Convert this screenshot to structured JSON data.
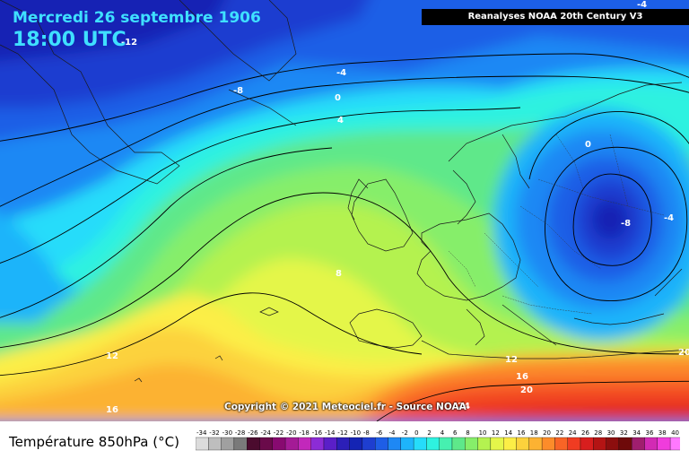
{
  "header": {
    "date": "Mercredi 26 septembre 1906",
    "time": "18:00 UTC",
    "source": "Reanalyses NOAA 20th Century V3"
  },
  "copyright": "Copyright © 2021 Meteociel.fr - Source NOAA",
  "legend": {
    "title": "Température 850hPa (°C)",
    "steps": [
      {
        "v": "-34",
        "c": "#dcdcdc"
      },
      {
        "v": "-32",
        "c": "#bebebe"
      },
      {
        "v": "-30",
        "c": "#a0a0a0"
      },
      {
        "v": "-28",
        "c": "#7a7a7a"
      },
      {
        "v": "-26",
        "c": "#4b0b2e"
      },
      {
        "v": "-24",
        "c": "#6a0a4a"
      },
      {
        "v": "-22",
        "c": "#880a70"
      },
      {
        "v": "-20",
        "c": "#a41b96"
      },
      {
        "v": "-18",
        "c": "#c228bb"
      },
      {
        "v": "-16",
        "c": "#8c2cd6"
      },
      {
        "v": "-14",
        "c": "#5a1fc8"
      },
      {
        "v": "-12",
        "c": "#2c1fb8"
      },
      {
        "v": "-10",
        "c": "#1424b4"
      },
      {
        "v": "-8",
        "c": "#1e3ed0"
      },
      {
        "v": "-6",
        "c": "#1e5ee6"
      },
      {
        "v": "-4",
        "c": "#1e88f4"
      },
      {
        "v": "-2",
        "c": "#1eb4fa"
      },
      {
        "v": "0",
        "c": "#26dcfa"
      },
      {
        "v": "2",
        "c": "#2ef2e0"
      },
      {
        "v": "4",
        "c": "#46f0b0"
      },
      {
        "v": "6",
        "c": "#5ee88a"
      },
      {
        "v": "8",
        "c": "#86ee6a"
      },
      {
        "v": "10",
        "c": "#b4f250"
      },
      {
        "v": "12",
        "c": "#e4f64a"
      },
      {
        "v": "14",
        "c": "#fcee46"
      },
      {
        "v": "16",
        "c": "#fcd23c"
      },
      {
        "v": "18",
        "c": "#fcb232"
      },
      {
        "v": "20",
        "c": "#fc8c2a"
      },
      {
        "v": "22",
        "c": "#f86426"
      },
      {
        "v": "24",
        "c": "#f03c22"
      },
      {
        "v": "26",
        "c": "#d81e1e"
      },
      {
        "v": "28",
        "c": "#b41414"
      },
      {
        "v": "30",
        "c": "#8c0e0e"
      },
      {
        "v": "32",
        "c": "#6e0a0a"
      },
      {
        "v": "34",
        "c": "#a01e6e"
      },
      {
        "v": "36",
        "c": "#d22ab4"
      },
      {
        "v": "38",
        "c": "#f03cdc"
      },
      {
        "v": "40",
        "c": "#ff78ff"
      }
    ]
  },
  "map": {
    "isotherm_labels": [
      "-12",
      "-8",
      "-4",
      "0",
      "4",
      "8",
      "0",
      "-8",
      "-4",
      "12",
      "12",
      "16",
      "20",
      "24",
      "16",
      "20",
      "-4"
    ]
  }
}
